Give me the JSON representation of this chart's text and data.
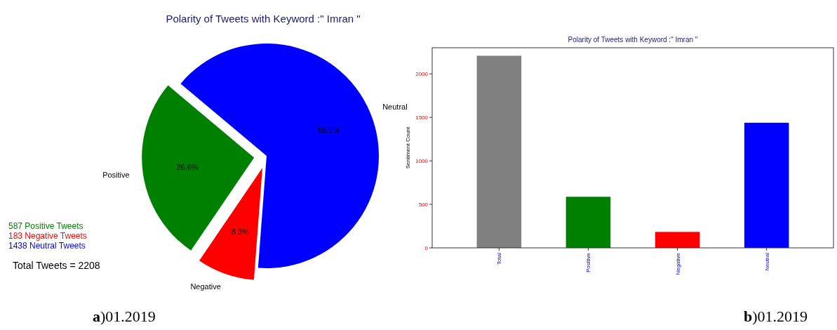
{
  "chart_data": [
    {
      "type": "pie",
      "title": "Polarity of Tweets with Keyword :\" Imran \"",
      "categories": [
        "Positive",
        "Negative",
        "Neutral"
      ],
      "values": [
        26.6,
        8.3,
        65.1
      ],
      "colors": [
        "#008000",
        "#ff0000",
        "#0000ff"
      ],
      "value_labels": [
        "26.6%",
        "8.3%",
        "65.1%"
      ],
      "annotations": [
        "587 Positive Tweets",
        "183 Negative Tweets",
        "1438 Neutral Tweets",
        "Total Tweets = 2208",
        "a)01.2019"
      ]
    },
    {
      "type": "bar",
      "title": "Polarity of Tweets with Keyword :\" Imran \"",
      "ylabel": "Sentiment Count",
      "categories": [
        "Total",
        "Positive",
        "Negative",
        "Neutral"
      ],
      "values": [
        2208,
        587,
        183,
        1438
      ],
      "colors": [
        "#808080",
        "#008000",
        "#ff0000",
        "#0000ff"
      ],
      "ylim": [
        0,
        2300
      ],
      "yticks": [
        0,
        500,
        1000,
        1500,
        2000
      ],
      "annotations": [
        "b)01.2019"
      ]
    }
  ]
}
